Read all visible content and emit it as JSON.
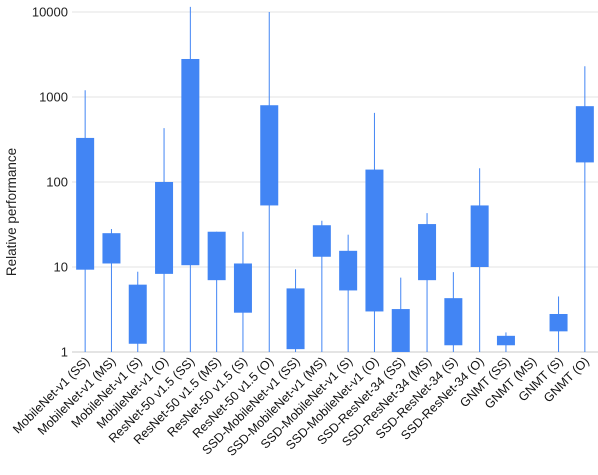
{
  "chart_data": {
    "type": "box",
    "title": "",
    "xlabel": "",
    "ylabel": "Relative performance",
    "yscale": "log",
    "ylim": [
      1,
      10000
    ],
    "yticks": [
      "1",
      "10",
      "100",
      "1000",
      "10000"
    ],
    "grid": "horizontal",
    "color": "#4285f4",
    "categories": [
      "MobileNet-v1 (SS)",
      "MobileNet-v1 (MS)",
      "MobileNet-v1 (S)",
      "MobileNet-v1 (O)",
      "ResNet-50 v1.5 (SS)",
      "ResNet-50 v1.5 (MS)",
      "ResNet-50 v1.5 (S)",
      "ResNet-50 v1.5 (O)",
      "SSD-MobileNet-v1 (SS)",
      "SSD-MobileNet-v1 (MS)",
      "SSD-MobileNet-v1 (S)",
      "SSD-MobileNet-v1 (O)",
      "SSD-ResNet-34 (SS)",
      "SSD-ResNet-34 (MS)",
      "SSD-ResNet-34 (S)",
      "SSD-ResNet-34 (O)",
      "GNMT (SS)",
      "GNMT (MS)",
      "GNMT (S)",
      "GNMT (O)"
    ],
    "min": [
      1,
      1,
      1,
      1,
      1,
      1,
      1,
      1,
      1,
      1,
      1,
      1,
      1,
      1,
      1,
      1,
      1,
      null,
      1,
      1
    ],
    "q1": [
      9.3,
      11,
      1.25,
      8.3,
      10.5,
      7,
      2.9,
      53,
      1.08,
      13.2,
      5.3,
      3,
      1,
      7,
      1.2,
      10,
      1.2,
      null,
      1.75,
      170
    ],
    "q3": [
      330,
      25,
      6.2,
      100,
      2800,
      26,
      11,
      800,
      5.6,
      31,
      15.5,
      140,
      3.2,
      32,
      4.3,
      53,
      1.55,
      null,
      2.8,
      780
    ],
    "max": [
      1200,
      28,
      8.8,
      430,
      11500,
      26,
      26,
      10000,
      9.4,
      35,
      24,
      650,
      7.5,
      43,
      8.7,
      145,
      1.7,
      null,
      4.5,
      2300
    ]
  }
}
